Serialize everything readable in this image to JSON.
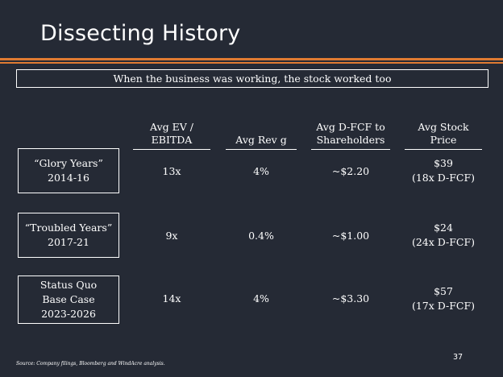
{
  "title": "Dissecting History",
  "subtitle": "When the business was working, the stock worked too",
  "columns": [
    {
      "line1": "Avg EV /",
      "line2": "EBITDA"
    },
    {
      "line1": "",
      "line2": "Avg Rev g"
    },
    {
      "line1": "Avg D-FCF to",
      "line2": "Shareholders"
    },
    {
      "line1": "Avg Stock",
      "line2": "Price"
    }
  ],
  "rows": [
    {
      "label_lines": [
        "“Glory Years”",
        "2014-16"
      ],
      "ev_ebitda": "13x",
      "rev_g": "4%",
      "dfcf": "~$2.20",
      "price": "$39",
      "price_note": "(18x D-FCF)"
    },
    {
      "label_lines": [
        "“Troubled Years”",
        "2017-21"
      ],
      "ev_ebitda": "9x",
      "rev_g": "0.4%",
      "dfcf": "~$1.00",
      "price": "$24",
      "price_note": "(24x D-FCF)"
    },
    {
      "label_lines": [
        "Status Quo",
        "Base Case",
        "2023-2026"
      ],
      "ev_ebitda": "14x",
      "rev_g": "4%",
      "dfcf": "~$3.30",
      "price": "$57",
      "price_note": "(17x D-FCF)"
    }
  ],
  "footnote": "Source: Company filings, Bloomberg and WindAcre analysis.",
  "page_number": "37",
  "colors": {
    "background": "#252a35",
    "accent": "#e07b32",
    "text": "#ffffff"
  }
}
